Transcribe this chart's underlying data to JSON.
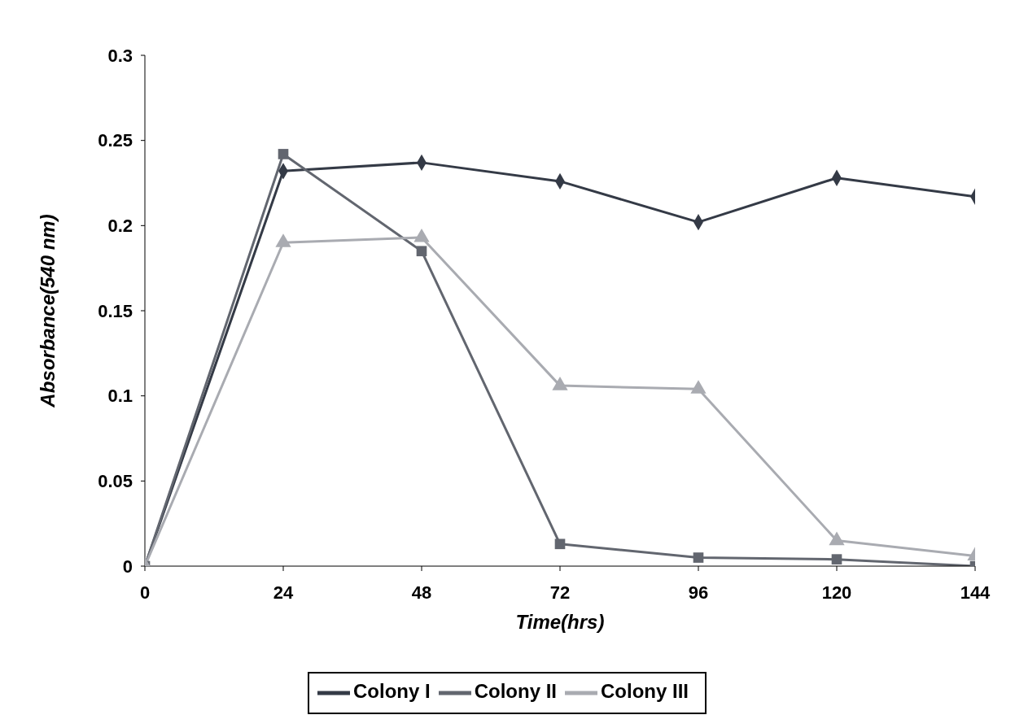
{
  "chart_data": {
    "type": "line",
    "xlabel": "Time(hrs)",
    "ylabel": "Absorbance(540 nm)",
    "x": [
      0,
      24,
      48,
      72,
      96,
      120,
      144
    ],
    "xlim": [
      0,
      144
    ],
    "xticks": [
      0,
      24,
      48,
      72,
      96,
      120,
      144
    ],
    "ylim": [
      0,
      0.3
    ],
    "yticks": [
      0,
      0.05,
      0.1,
      0.15,
      0.2,
      0.25,
      0.3
    ],
    "grid": false,
    "legend": "bottom",
    "line_style": "solid",
    "series": [
      {
        "name": "Colony I",
        "color": "#343a46",
        "marker": "diamond",
        "values": [
          0,
          0.232,
          0.237,
          0.226,
          0.202,
          0.228,
          0.217
        ]
      },
      {
        "name": "Colony II",
        "color": "#62666f",
        "marker": "square",
        "values": [
          0,
          0.242,
          0.185,
          0.013,
          0.005,
          0.004,
          0
        ]
      },
      {
        "name": "Colony III",
        "color": "#a9abb1",
        "marker": "triangle",
        "values": [
          0,
          0.19,
          0.193,
          0.106,
          0.104,
          0.015,
          0.006
        ]
      }
    ]
  }
}
